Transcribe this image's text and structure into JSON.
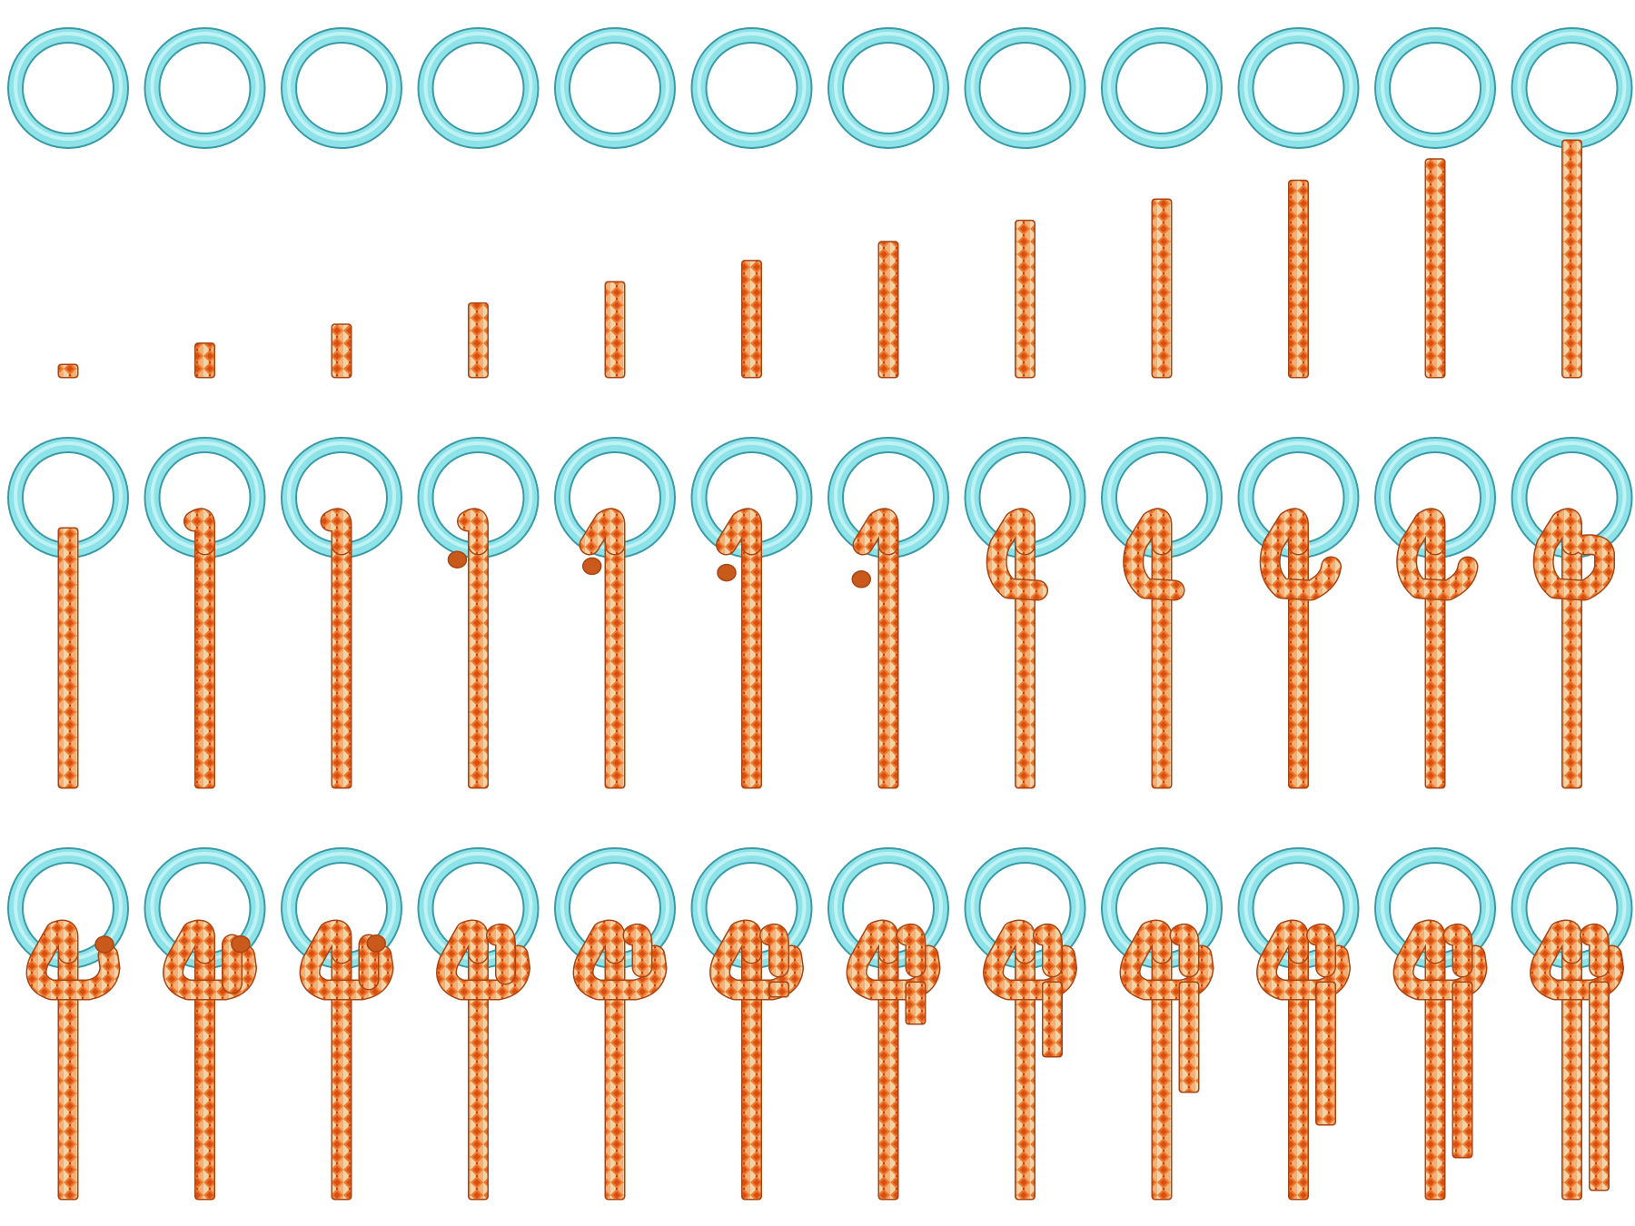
{
  "colors": {
    "ring_fill": "#8ee3e8",
    "ring_outline": "#3a9aa6",
    "ring_highlight": "#d4f8fa",
    "rope_fill": "#ef7a2e",
    "rope_outline": "#a84512",
    "rope_pattern_light": "#f4dcb2",
    "rope_pattern_dark": "#d94e12",
    "background": "#ffffff"
  },
  "sequence": {
    "description_of_stages": [
      "ring-and-growing-rope",
      "rope-threaded-through-ring",
      "knot-being-tied-and-tail-extended"
    ],
    "rows": [
      {
        "name": "row-1",
        "frames": [
          {
            "ring": true,
            "rope_length": 0.05,
            "wrap": 0,
            "tail": 0,
            "end_dot": false
          },
          {
            "ring": true,
            "rope_length": 0.14,
            "wrap": 0,
            "tail": 0,
            "end_dot": false
          },
          {
            "ring": true,
            "rope_length": 0.22,
            "wrap": 0,
            "tail": 0,
            "end_dot": false
          },
          {
            "ring": true,
            "rope_length": 0.31,
            "wrap": 0,
            "tail": 0,
            "end_dot": false
          },
          {
            "ring": true,
            "rope_length": 0.4,
            "wrap": 0,
            "tail": 0,
            "end_dot": false
          },
          {
            "ring": true,
            "rope_length": 0.49,
            "wrap": 0,
            "tail": 0,
            "end_dot": false
          },
          {
            "ring": true,
            "rope_length": 0.57,
            "wrap": 0,
            "tail": 0,
            "end_dot": false
          },
          {
            "ring": true,
            "rope_length": 0.66,
            "wrap": 0,
            "tail": 0,
            "end_dot": false
          },
          {
            "ring": true,
            "rope_length": 0.75,
            "wrap": 0,
            "tail": 0,
            "end_dot": false
          },
          {
            "ring": true,
            "rope_length": 0.83,
            "wrap": 0,
            "tail": 0,
            "end_dot": false
          },
          {
            "ring": true,
            "rope_length": 0.92,
            "wrap": 0,
            "tail": 0,
            "end_dot": false
          },
          {
            "ring": true,
            "rope_length": 1.0,
            "wrap": 0,
            "tail": 0,
            "end_dot": false
          }
        ]
      },
      {
        "name": "row-2",
        "frames": [
          {
            "ring": true,
            "rope_length": 1.0,
            "wrap": 0.0,
            "tail": 0,
            "end_dot": false
          },
          {
            "ring": true,
            "rope_length": 1.0,
            "wrap": 0.05,
            "tail": 0,
            "end_dot": false
          },
          {
            "ring": true,
            "rope_length": 1.0,
            "wrap": 0.1,
            "tail": 0,
            "end_dot": false
          },
          {
            "ring": true,
            "rope_length": 1.0,
            "wrap": 0.18,
            "tail": 0,
            "end_dot": true
          },
          {
            "ring": true,
            "rope_length": 1.0,
            "wrap": 0.26,
            "tail": 0,
            "end_dot": true
          },
          {
            "ring": true,
            "rope_length": 1.0,
            "wrap": 0.34,
            "tail": 0,
            "end_dot": true
          },
          {
            "ring": true,
            "rope_length": 1.0,
            "wrap": 0.42,
            "tail": 0,
            "end_dot": true
          },
          {
            "ring": true,
            "rope_length": 1.0,
            "wrap": 0.5,
            "tail": 0,
            "end_dot": false
          },
          {
            "ring": true,
            "rope_length": 1.0,
            "wrap": 0.6,
            "tail": 0,
            "end_dot": false
          },
          {
            "ring": true,
            "rope_length": 1.0,
            "wrap": 0.7,
            "tail": 0,
            "end_dot": false
          },
          {
            "ring": true,
            "rope_length": 1.0,
            "wrap": 0.8,
            "tail": 0,
            "end_dot": false
          },
          {
            "ring": true,
            "rope_length": 1.0,
            "wrap": 0.9,
            "tail": 0,
            "end_dot": false
          }
        ]
      },
      {
        "name": "row-3",
        "frames": [
          {
            "ring": true,
            "rope_length": 1.0,
            "wrap": 1.0,
            "second_loop": 0.0,
            "tail": 0.0,
            "end_dot": true
          },
          {
            "ring": true,
            "rope_length": 1.0,
            "wrap": 1.0,
            "second_loop": 0.1,
            "tail": 0.0,
            "end_dot": true
          },
          {
            "ring": true,
            "rope_length": 1.0,
            "wrap": 1.0,
            "second_loop": 0.3,
            "tail": 0.0,
            "end_dot": true
          },
          {
            "ring": true,
            "rope_length": 1.0,
            "wrap": 1.0,
            "second_loop": 0.6,
            "tail": 0.0,
            "end_dot": false
          },
          {
            "ring": true,
            "rope_length": 1.0,
            "wrap": 1.0,
            "second_loop": 1.0,
            "tail": 0.0,
            "end_dot": false
          },
          {
            "ring": true,
            "rope_length": 1.0,
            "wrap": 1.0,
            "second_loop": 1.0,
            "tail": 0.05,
            "end_dot": false
          },
          {
            "ring": true,
            "rope_length": 1.0,
            "wrap": 1.0,
            "second_loop": 1.0,
            "tail": 0.15,
            "end_dot": false
          },
          {
            "ring": true,
            "rope_length": 1.0,
            "wrap": 1.0,
            "second_loop": 1.0,
            "tail": 0.27,
            "end_dot": false
          },
          {
            "ring": true,
            "rope_length": 1.0,
            "wrap": 1.0,
            "second_loop": 1.0,
            "tail": 0.4,
            "end_dot": false
          },
          {
            "ring": true,
            "rope_length": 1.0,
            "wrap": 1.0,
            "second_loop": 1.0,
            "tail": 0.52,
            "end_dot": false
          },
          {
            "ring": true,
            "rope_length": 1.0,
            "wrap": 1.0,
            "second_loop": 1.0,
            "tail": 0.64,
            "end_dot": false
          },
          {
            "ring": true,
            "rope_length": 1.0,
            "wrap": 1.0,
            "second_loop": 1.0,
            "tail": 0.76,
            "end_dot": false
          }
        ]
      }
    ]
  }
}
